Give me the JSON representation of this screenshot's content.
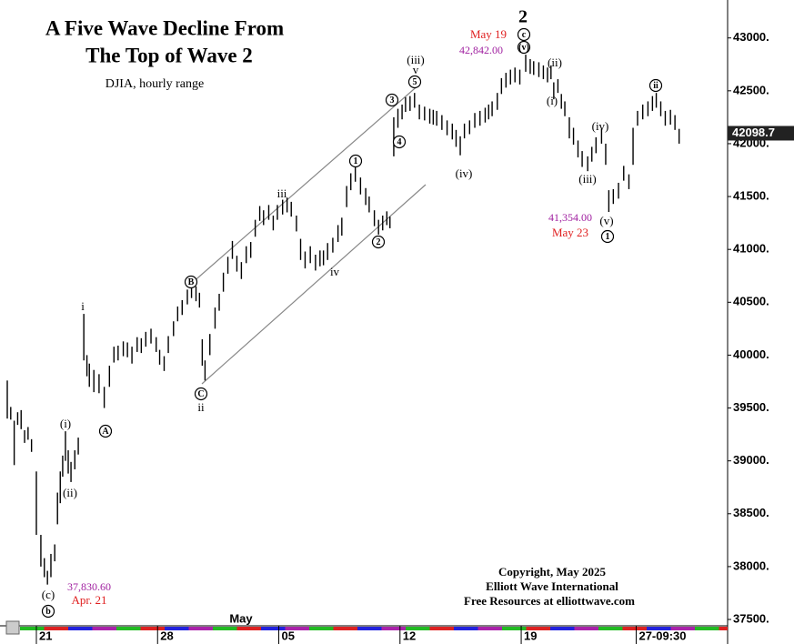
{
  "chart_data": {
    "type": "range-bar",
    "title": [
      "A Five Wave Decline From",
      "The Top of Wave 2"
    ],
    "subtitle": "DJIA, hourly range",
    "footer": [
      "Copyright, May 2025",
      "Elliott Wave International",
      "Free Resources at elliottwave.com"
    ],
    "color": "#000000",
    "xlim": [
      0,
      208
    ],
    "ylim": [
      37440,
      43290
    ],
    "xticks": [
      {
        "value": 8.4,
        "label": "21"
      },
      {
        "value": 43.4,
        "label": "28"
      },
      {
        "value": 78.4,
        "label": "05"
      },
      {
        "value": 113.4,
        "label": "12"
      },
      {
        "value": 148.4,
        "label": "19"
      },
      {
        "value": 181.6,
        "label": "27-09:30"
      }
    ],
    "yticks": [
      {
        "value": 37500,
        "label": "37500."
      },
      {
        "value": 38000,
        "label": "38000."
      },
      {
        "value": 38500,
        "label": "38500."
      },
      {
        "value": 39000,
        "label": "39000."
      },
      {
        "value": 39500,
        "label": "39500."
      },
      {
        "value": 40000,
        "label": "40000."
      },
      {
        "value": 40500,
        "label": "40500."
      },
      {
        "value": 41000,
        "label": "41000."
      },
      {
        "value": 41500,
        "label": "41500."
      },
      {
        "value": 42000,
        "label": "42000."
      },
      {
        "value": 42500,
        "label": "42500."
      },
      {
        "value": 43000,
        "label": "43000."
      }
    ],
    "last_price": 42098.7,
    "annotations": [
      "2",
      "May 19",
      "42,842.00",
      "c",
      "(v)",
      "(ii)",
      "(iii)",
      "v",
      "3",
      "5",
      "4",
      "(i)",
      "(iv)",
      "(iv)",
      "(iii)",
      "ii",
      "41,354.00",
      "May 23",
      "(v)",
      "1",
      "1",
      "2",
      "iii",
      "iv",
      "B",
      "C",
      "ii",
      "i",
      "A",
      "(i)",
      "(ii)",
      "37,830.60",
      "Apr. 21",
      "(c)",
      "b",
      "May"
    ],
    "x": [
      0,
      1,
      2,
      3,
      4,
      5,
      6,
      7,
      8.4,
      9.7,
      10.7,
      11.6,
      12.6,
      13.7,
      14.5,
      15.3,
      16,
      16.8,
      17.6,
      18.4,
      19.5,
      20.5,
      22.1,
      23,
      23.7,
      25,
      26.5,
      28,
      29.5,
      30.8,
      32,
      33.5,
      34.7,
      36,
      37.5,
      38.7,
      40,
      41.5,
      43,
      44,
      45.3,
      46.5,
      48,
      49.2,
      50.5,
      52,
      53.2,
      54.5,
      55.5,
      56.3,
      57.1,
      58.5,
      60,
      61.2,
      62.4,
      63.7,
      65,
      66.3,
      67.6,
      69,
      70.3,
      71.6,
      72.9,
      74,
      75.5,
      76.8,
      78,
      79.5,
      80.8,
      82,
      83.5,
      84.7,
      86,
      87.5,
      89,
      90.3,
      91.3,
      92.5,
      94,
      95.5,
      96.6,
      98,
      99.2,
      100.5,
      102,
      103.5,
      104.5,
      106,
      107.2,
      108.4,
      109.6,
      110.5,
      111.6,
      112.8,
      114,
      115,
      116.3,
      117.6,
      119,
      120.5,
      122,
      123,
      124,
      125.5,
      127,
      128.5,
      129.6,
      130.8,
      132,
      133.5,
      135,
      136.5,
      138,
      139,
      140,
      141.5,
      142.7,
      144,
      145.3,
      146.6,
      148,
      149.7,
      151,
      152,
      153.5,
      154.8,
      156,
      157,
      157.8,
      159,
      160,
      161,
      162.3,
      163.5,
      164.8,
      166,
      167.6,
      168.8,
      170,
      171.6,
      172.8,
      173.7,
      175,
      176.5,
      178,
      179.5,
      180.7,
      182,
      183.5,
      185,
      186.3,
      187.4,
      188.7,
      190,
      191.5,
      192.8,
      194
    ],
    "high": [
      39760,
      39510,
      39380,
      39460,
      39480,
      39290,
      39320,
      39205,
      38900,
      38300,
      38080,
      37960,
      38120,
      38210,
      38700,
      38900,
      39050,
      39280,
      39100,
      38990,
      39100,
      39220,
      40390,
      40000,
      39920,
      39860,
      39820,
      39700,
      39900,
      40080,
      40090,
      40130,
      40120,
      40080,
      40170,
      40160,
      40220,
      40250,
      40170,
      40050,
      39990,
      40180,
      40320,
      40460,
      40520,
      40620,
      40680,
      40650,
      40590,
      40150,
      39950,
      40200,
      40450,
      40580,
      40780,
      40930,
      41080,
      40940,
      40880,
      41030,
      41070,
      41280,
      41410,
      41370,
      41420,
      41320,
      41420,
      41470,
      41490,
      41450,
      41320,
      41100,
      40980,
      41030,
      40950,
      40990,
      40990,
      41060,
      41110,
      41230,
      41300,
      41600,
      41720,
      41780,
      41680,
      41580,
      41500,
      41370,
      41280,
      41320,
      41360,
      41310,
      42250,
      42330,
      42370,
      42440,
      42450,
      42480,
      42370,
      42350,
      42330,
      42320,
      42310,
      42270,
      42220,
      42190,
      42130,
      42070,
      42190,
      42220,
      42290,
      42310,
      42340,
      42370,
      42400,
      42480,
      42620,
      42670,
      42700,
      42720,
      42700,
      42842,
      42800,
      42780,
      42770,
      42740,
      42720,
      42740,
      42580,
      42610,
      42470,
      42400,
      42250,
      42150,
      42030,
      41930,
      41880,
      41970,
      42060,
      42140,
      42000,
      41560,
      41570,
      41630,
      41790,
      41710,
      42150,
      42310,
      42370,
      42400,
      42450,
      42480,
      42400,
      42310,
      42320,
      42270,
      42140
    ],
    "low": [
      39400,
      39390,
      38960,
      39340,
      39300,
      39170,
      39200,
      39085,
      38300,
      38000,
      37900,
      37830,
      37900,
      38050,
      38400,
      38600,
      38850,
      39000,
      38880,
      38800,
      38920,
      39060,
      39950,
      39800,
      39700,
      39650,
      39640,
      39500,
      39700,
      39930,
      39950,
      39990,
      39980,
      39920,
      40030,
      40020,
      40080,
      40110,
      40030,
      39910,
      39850,
      40020,
      40180,
      40320,
      40380,
      40480,
      40540,
      40510,
      40450,
      39900,
      39760,
      40000,
      40250,
      40420,
      40600,
      40770,
      40910,
      40790,
      40720,
      40870,
      40920,
      41120,
      41270,
      41230,
      41280,
      41180,
      41280,
      41330,
      41350,
      41310,
      41170,
      40900,
      40820,
      40870,
      40800,
      40840,
      40850,
      40900,
      40970,
      41070,
      41130,
      41400,
      41560,
      41640,
      41520,
      41420,
      41350,
      41220,
      41140,
      41180,
      41230,
      41200,
      41880,
      42150,
      42230,
      42300,
      42310,
      42340,
      42230,
      42220,
      42190,
      42180,
      42170,
      42130,
      42080,
      42040,
      41970,
      41890,
      42050,
      42090,
      42150,
      42170,
      42200,
      42230,
      42260,
      42320,
      42470,
      42530,
      42560,
      42580,
      42560,
      42680,
      42660,
      42650,
      42630,
      42610,
      42580,
      42610,
      42420,
      42480,
      42330,
      42260,
      42050,
      41990,
      41870,
      41780,
      41740,
      41830,
      41910,
      42000,
      41800,
      41354,
      41430,
      41480,
      41650,
      41570,
      41800,
      42170,
      42230,
      42260,
      42310,
      42340,
      42260,
      42170,
      42180,
      42130,
      42000
    ]
  }
}
